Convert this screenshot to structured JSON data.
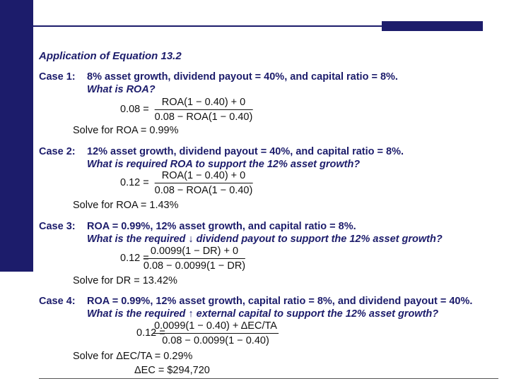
{
  "title": "Application of Equation 13.2",
  "cases": [
    {
      "label": "Case 1:",
      "description": "8% asset growth, dividend payout = 40%, and capital ratio = 8%.",
      "question": "What is ROA?",
      "equation": {
        "lhs": "0.08 =",
        "numerator": "ROA(1 − 0.40) + 0",
        "denominator": "0.08 − ROA(1 − 0.40)"
      },
      "solutions": [
        "Solve for ROA = 0.99%"
      ]
    },
    {
      "label": "Case 2:",
      "description": "12% asset growth, dividend payout = 40%, and capital ratio = 8%.",
      "question": "What is required ROA to support the 12% asset growth?",
      "equation": {
        "lhs": "0.12 =",
        "numerator": "ROA(1 − 0.40) + 0",
        "denominator": "0.08 − ROA(1 − 0.40)"
      },
      "solutions": [
        "Solve for ROA = 1.43%"
      ]
    },
    {
      "label": "Case 3:",
      "description": "ROA = 0.99%, 12% asset growth, and capital ratio = 8%.",
      "question": "What is the required ↓ dividend payout to support the 12% asset growth?",
      "equation": {
        "lhs": "0.12 =",
        "numerator": "0.0099(1 − DR) + 0",
        "denominator": "0.08 − 0.0099(1 − DR)"
      },
      "solutions": [
        "Solve for DR = 13.42%"
      ]
    },
    {
      "label": "Case 4:",
      "description": "ROA = 0.99%, 12% asset growth, capital ratio = 8%, and dividend payout = 40%.",
      "question": "What is the required ↑ external capital to support the 12% asset growth?",
      "equation": {
        "lhs": "0.12 =",
        "numerator": "0.0099(1 − 0.40) + ΔEC/TA",
        "denominator": "0.08 − 0.0099(1 − 0.40)"
      },
      "solutions": [
        "Solve for ΔEC/TA = 0.29%",
        "ΔEC = $294,720"
      ]
    }
  ]
}
